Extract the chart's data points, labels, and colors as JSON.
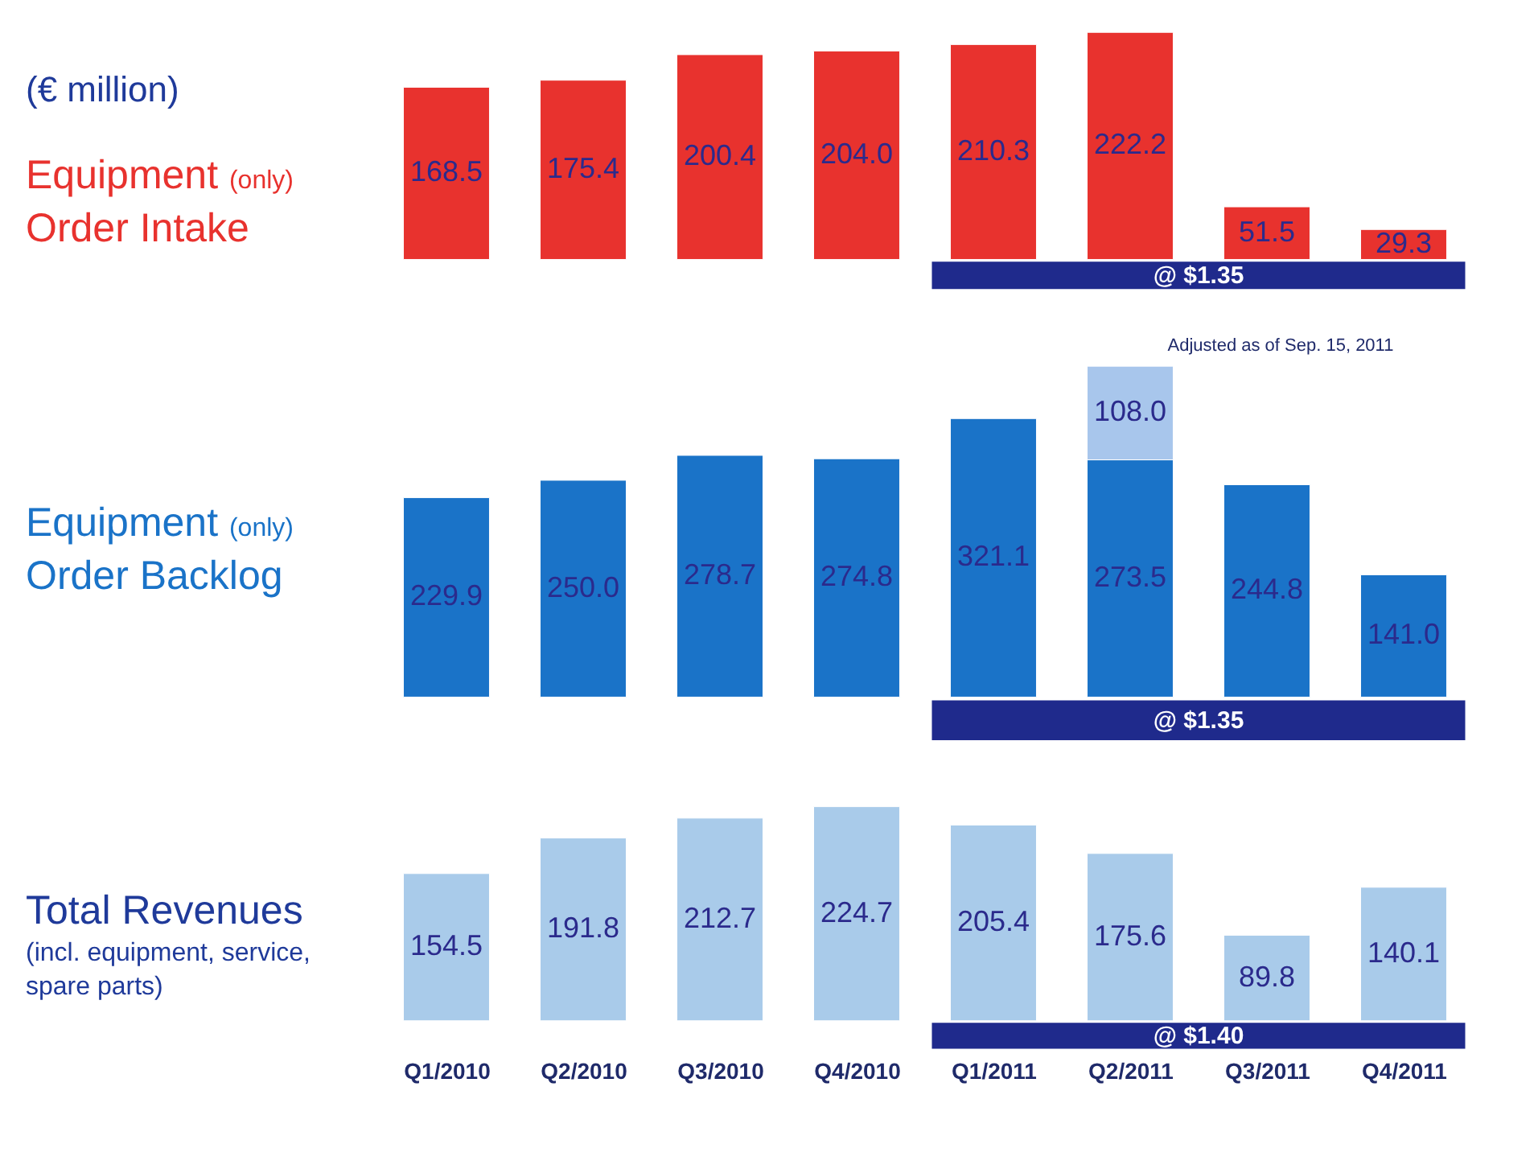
{
  "chart_data": [
    {
      "type": "bar",
      "subtitle": "(€ million)",
      "ylabel": "Equipment (only) Order Intake",
      "categories": [
        null,
        null,
        null,
        null,
        null,
        null,
        null,
        null
      ],
      "series": [
        {
          "color": "#e8322e",
          "values": [
            168.5,
            175.4,
            200.4,
            204.0,
            210.3,
            222.2,
            51.5,
            29.3
          ],
          "value_labels": [
            "168.5",
            "175.4",
            "200.4",
            "204.0",
            "210.3",
            "222.2",
            "51.5",
            "29.3"
          ]
        }
      ],
      "tick_labels": false,
      "annotations": [
        "@ $1.35"
      ]
    },
    {
      "type": "bar",
      "ylabel": "Equipment (only) Order Backlog",
      "categories": [
        null,
        null,
        null,
        null,
        null,
        null,
        null,
        null
      ],
      "stacked": true,
      "series": [
        {
          "color": "#1a73c8",
          "values": [
            229.9,
            250.0,
            278.7,
            274.8,
            321.1,
            273.5,
            244.8,
            141.0
          ],
          "value_labels": [
            "229.9",
            "250.0",
            "278.7",
            "274.8",
            "321.1",
            "273.5",
            "244.8",
            "141.0"
          ]
        },
        {
          "color": "#a8c6ec",
          "values": [
            null,
            null,
            null,
            null,
            null,
            108.0,
            null,
            null
          ],
          "value_labels": [
            null,
            null,
            null,
            null,
            null,
            "108.0",
            null,
            null
          ]
        }
      ],
      "tick_labels": false,
      "annotations": [
        "@ $1.35",
        "Adjusted as of Sep. 15, 2011"
      ]
    },
    {
      "type": "bar",
      "ylabel": "Total Revenues (incl. equipment, service, spare parts)",
      "categories": [
        "Q1/2010",
        "Q2/2010",
        "Q3/2010",
        "Q4/2010",
        "Q1/2011",
        "Q2/2011",
        "Q3/2011",
        "Q4/2011"
      ],
      "series": [
        {
          "color": "#a9cbea",
          "values": [
            154.5,
            191.8,
            212.7,
            224.7,
            205.4,
            175.6,
            89.8,
            140.1
          ],
          "value_labels": [
            "154.5",
            "191.8",
            "212.7",
            "224.7",
            "205.4",
            "175.6",
            "89.8",
            "140.1"
          ]
        }
      ],
      "tick_labels": "x",
      "annotations": [
        "@ $1.40"
      ]
    }
  ]
}
